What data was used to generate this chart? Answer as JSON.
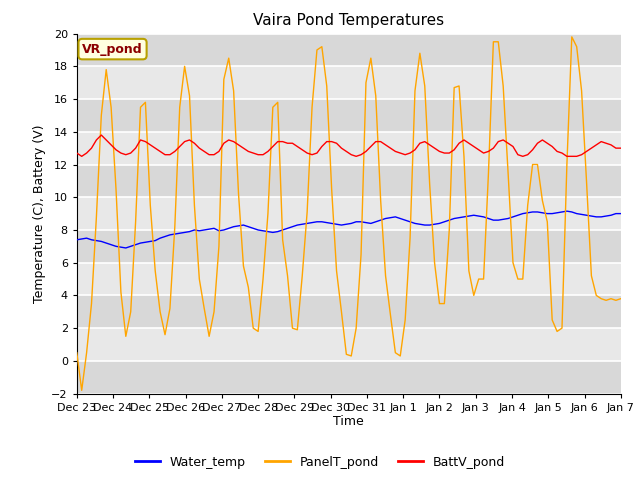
{
  "title": "Vaira Pond Temperatures",
  "xlabel": "Time",
  "ylabel": "Temperature (C), Battery (V)",
  "annotation": "VR_pond",
  "ylim": [
    -2,
    20
  ],
  "yticks": [
    -2,
    0,
    2,
    4,
    6,
    8,
    10,
    12,
    14,
    16,
    18,
    20
  ],
  "bg_color": "#e8e8e8",
  "legend": [
    "Water_temp",
    "PanelT_pond",
    "BattV_pond"
  ],
  "legend_colors": [
    "blue",
    "orange",
    "red"
  ],
  "x_labels": [
    "Dec 23",
    "Dec 24",
    "Dec 25",
    "Dec 26",
    "Dec 27",
    "Dec 28",
    "Dec 29",
    "Dec 30",
    "Dec 31",
    "Jan 1",
    "Jan 2",
    "Jan 3",
    "Jan 4",
    "Jan 5",
    "Jan 6",
    "Jan 7"
  ],
  "water_temp": [
    7.4,
    7.45,
    7.5,
    7.4,
    7.35,
    7.3,
    7.2,
    7.1,
    7.0,
    6.95,
    6.9,
    7.0,
    7.1,
    7.2,
    7.25,
    7.3,
    7.35,
    7.5,
    7.6,
    7.7,
    7.75,
    7.8,
    7.85,
    7.9,
    8.0,
    7.95,
    8.0,
    8.05,
    8.1,
    7.95,
    8.0,
    8.1,
    8.2,
    8.25,
    8.3,
    8.2,
    8.1,
    8.0,
    7.95,
    7.9,
    7.85,
    7.9,
    8.0,
    8.1,
    8.2,
    8.3,
    8.35,
    8.4,
    8.45,
    8.5,
    8.5,
    8.45,
    8.4,
    8.35,
    8.3,
    8.35,
    8.4,
    8.5,
    8.5,
    8.45,
    8.4,
    8.5,
    8.6,
    8.7,
    8.75,
    8.8,
    8.7,
    8.6,
    8.5,
    8.4,
    8.35,
    8.3,
    8.3,
    8.35,
    8.4,
    8.5,
    8.6,
    8.7,
    8.75,
    8.8,
    8.85,
    8.9,
    8.85,
    8.8,
    8.7,
    8.6,
    8.6,
    8.65,
    8.7,
    8.8,
    8.9,
    9.0,
    9.05,
    9.1,
    9.1,
    9.05,
    9.0,
    9.0,
    9.05,
    9.1,
    9.15,
    9.1,
    9.0,
    8.95,
    8.9,
    8.85,
    8.8,
    8.8,
    8.85,
    8.9,
    9.0,
    9.0
  ],
  "panel_temp": [
    0.5,
    -1.8,
    0.5,
    3.5,
    8.8,
    15.0,
    17.8,
    15.5,
    10.5,
    4.2,
    1.5,
    3.0,
    8.5,
    15.5,
    15.8,
    9.5,
    5.5,
    3.0,
    1.6,
    3.2,
    8.2,
    15.5,
    18.0,
    16.2,
    9.5,
    5.0,
    3.2,
    1.5,
    3.0,
    7.0,
    17.2,
    18.5,
    16.5,
    10.2,
    5.8,
    4.5,
    2.0,
    1.8,
    5.0,
    9.0,
    15.5,
    15.8,
    7.4,
    5.2,
    2.0,
    1.9,
    5.2,
    9.1,
    15.5,
    19.0,
    19.2,
    16.8,
    10.5,
    5.5,
    3.0,
    0.4,
    0.3,
    2.0,
    6.5,
    17.0,
    18.5,
    16.2,
    9.8,
    5.2,
    2.8,
    0.5,
    0.3,
    2.5,
    7.5,
    16.5,
    18.8,
    16.8,
    10.8,
    6.0,
    3.5,
    3.5,
    8.0,
    16.7,
    16.8,
    12.5,
    5.5,
    4.0,
    5.0,
    5.0,
    11.5,
    19.5,
    19.5,
    16.8,
    11.5,
    6.0,
    5.0,
    5.0,
    9.5,
    12.0,
    12.0,
    9.8,
    8.5,
    2.5,
    1.8,
    2.0,
    12.0,
    19.8,
    19.2,
    16.5,
    11.0,
    5.2,
    4.0,
    3.8,
    3.7,
    3.8,
    3.7,
    3.8
  ],
  "batt_volt": [
    12.7,
    12.5,
    12.7,
    13.0,
    13.5,
    13.8,
    13.5,
    13.2,
    12.9,
    12.7,
    12.6,
    12.7,
    13.0,
    13.5,
    13.4,
    13.2,
    13.0,
    12.8,
    12.6,
    12.6,
    12.8,
    13.1,
    13.4,
    13.5,
    13.3,
    13.0,
    12.8,
    12.6,
    12.6,
    12.8,
    13.3,
    13.5,
    13.4,
    13.2,
    13.0,
    12.8,
    12.7,
    12.6,
    12.6,
    12.8,
    13.1,
    13.4,
    13.4,
    13.3,
    13.3,
    13.1,
    12.9,
    12.7,
    12.6,
    12.7,
    13.1,
    13.4,
    13.4,
    13.3,
    13.0,
    12.8,
    12.6,
    12.5,
    12.6,
    12.8,
    13.1,
    13.4,
    13.4,
    13.2,
    13.0,
    12.8,
    12.7,
    12.6,
    12.7,
    12.9,
    13.3,
    13.4,
    13.2,
    13.0,
    12.8,
    12.7,
    12.7,
    12.9,
    13.3,
    13.5,
    13.3,
    13.1,
    12.9,
    12.7,
    12.8,
    13.0,
    13.4,
    13.5,
    13.3,
    13.1,
    12.6,
    12.5,
    12.6,
    12.9,
    13.3,
    13.5,
    13.3,
    13.1,
    12.8,
    12.7,
    12.5,
    12.5,
    12.5,
    12.6,
    12.8,
    13.0,
    13.2,
    13.4,
    13.3,
    13.2,
    13.0,
    13.0
  ]
}
